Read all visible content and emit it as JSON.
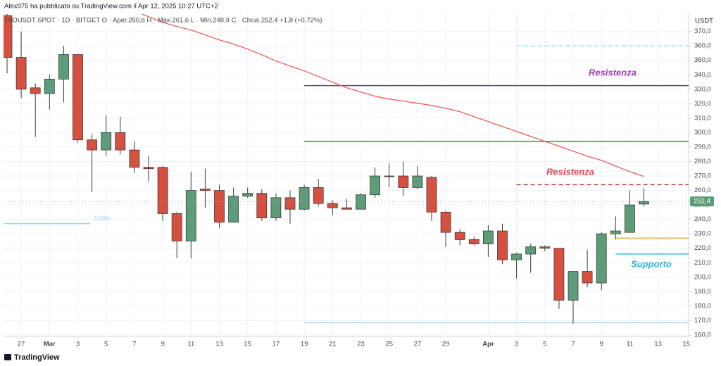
{
  "header": {
    "published": "Alex975 ha pubblicato su TradingView.com il Apr 12, 2025 10:27 UTC+2",
    "legend": "TAOUSDT SPOT · 1D · BITGET  O · Aper.250,6  H · Max.261,6  L · Min.248,9  C · Chius.252,4  +1,8 (+0,72%)",
    "brand": "TradingView"
  },
  "chart_data": {
    "type": "candlestick",
    "y_axis_label": "USDT",
    "categories": [
      null,
      "27",
      null,
      "Mar",
      null,
      "3",
      null,
      "5",
      null,
      "7",
      null,
      "9",
      null,
      "11",
      null,
      "13",
      null,
      "15",
      null,
      "17",
      null,
      "19",
      null,
      "21",
      null,
      "23",
      null,
      "25",
      null,
      "27",
      null,
      "29",
      null,
      null,
      "Apr",
      null,
      "3",
      null,
      "5",
      null,
      "7",
      null,
      "9",
      null,
      "11",
      null,
      "13",
      null,
      "15"
    ],
    "open": [
      381,
      352,
      331,
      327,
      337,
      354,
      295,
      288,
      300,
      288,
      276,
      276,
      244,
      225,
      261,
      260,
      238,
      256,
      258,
      241,
      255,
      247,
      262,
      251,
      248,
      247,
      257,
      270,
      270,
      262,
      269,
      245,
      231,
      226,
      223,
      232,
      212,
      216,
      221,
      220,
      184,
      204,
      196,
      230,
      231,
      250.6,
      null,
      null,
      null
    ],
    "high": [
      382,
      370,
      334,
      340,
      360,
      354,
      299,
      312,
      311,
      294,
      284,
      277,
      245,
      273,
      275,
      264,
      262,
      262,
      261,
      258,
      260,
      264,
      268,
      253,
      254,
      258,
      276,
      279,
      280,
      277,
      270,
      246,
      233,
      228,
      236,
      237,
      217,
      223,
      222,
      220,
      204,
      219,
      231,
      242,
      260,
      261.6,
      null,
      null,
      null
    ],
    "low": [
      341,
      324,
      297,
      316,
      321,
      293,
      259,
      284,
      285,
      272,
      266,
      239,
      213,
      213,
      248,
      234,
      238,
      255,
      239,
      239,
      237,
      246,
      249,
      243,
      247,
      247,
      255,
      262,
      256,
      261,
      239,
      221,
      222,
      222,
      214,
      209,
      199,
      203,
      218,
      178,
      168,
      193,
      191,
      226,
      231,
      248.9,
      null,
      null,
      null
    ],
    "close": [
      352,
      330,
      327,
      337,
      354,
      295,
      288,
      300,
      288,
      276,
      275,
      244,
      225,
      260,
      260,
      238,
      256,
      258,
      241,
      255,
      247,
      262,
      251,
      248,
      247,
      257,
      270,
      269.5,
      262,
      270,
      245,
      231,
      226,
      223,
      232,
      212,
      216,
      221,
      220,
      184,
      204,
      196,
      230,
      232,
      250,
      252.4,
      null,
      null,
      null
    ],
    "up_color": "#5d9c78",
    "down_color": "#d6503f",
    "moving_average": {
      "color": "#ef5b5b",
      "values": [
        null,
        null,
        null,
        null,
        null,
        null,
        null,
        null,
        null,
        384.1,
        380.2,
        376.3,
        373.4,
        371,
        367.6,
        364.2,
        361.2,
        357.8,
        353.9,
        349.5,
        346.1,
        342.7,
        338.8,
        334.9,
        331,
        328.1,
        325.2,
        323.2,
        321.8,
        320.3,
        318.8,
        316.9,
        314.4,
        311,
        307.6,
        304.2,
        300.8,
        297.4,
        294,
        290.6,
        287.2,
        283.7,
        280.8,
        276.9,
        273,
        269.6,
        null,
        null,
        null
      ]
    },
    "last_price_label": "252,4",
    "levels": [
      {
        "value": 332.5,
        "color": "#5b3fb0",
        "dashed": false
      },
      {
        "value": 294,
        "color": "#3d8f3d",
        "dashed": false
      },
      {
        "value": 360,
        "color": "#9fe3e6",
        "dashed": true
      },
      {
        "value": 264,
        "color": "#c0392b",
        "dashed": true
      },
      {
        "value": 227,
        "color": "#e8b030",
        "dashed": false
      },
      {
        "value": 216,
        "color": "#3bbcd8",
        "dashed": false
      },
      {
        "value": 168.5,
        "color": "#9fe3e6",
        "dashed": false
      },
      {
        "value": 237,
        "color": "#9fd6f0",
        "dashed": false
      }
    ],
    "annotations": [
      {
        "text": "Resistenza",
        "color": "#a63bb5"
      },
      {
        "text": "Resistenza",
        "color": "#e0454a"
      },
      {
        "text": "Supporto",
        "color": "#2ab5d6"
      },
      {
        "text": "0.00%",
        "color": "#9fd6f0"
      }
    ],
    "ylim": [
      159,
      382
    ],
    "yticks": [
      {
        "value": 160,
        "label": "160,0"
      },
      {
        "value": 170,
        "label": "170,0"
      },
      {
        "value": 180,
        "label": "180,0"
      },
      {
        "value": 190,
        "label": "190,0"
      },
      {
        "value": 200,
        "label": "200,0"
      },
      {
        "value": 210,
        "label": "210,0"
      },
      {
        "value": 220,
        "label": "220,0"
      },
      {
        "value": 230,
        "label": "230,0"
      },
      {
        "value": 240,
        "label": "240,0"
      },
      {
        "value": 250,
        "label": "250,0"
      },
      {
        "value": 260,
        "label": "260,0"
      },
      {
        "value": 270,
        "label": "270,0"
      },
      {
        "value": 280,
        "label": "280,0"
      },
      {
        "value": 290,
        "label": "290,0"
      },
      {
        "value": 300,
        "label": "300,0"
      },
      {
        "value": 310,
        "label": "310,0"
      },
      {
        "value": 320,
        "label": "320,0"
      },
      {
        "value": 330,
        "label": "330,0"
      },
      {
        "value": 340,
        "label": "340,0"
      },
      {
        "value": 350,
        "label": "350,0"
      },
      {
        "value": 360,
        "label": "360,0"
      },
      {
        "value": 370,
        "label": "370,0"
      }
    ],
    "grid": true
  }
}
